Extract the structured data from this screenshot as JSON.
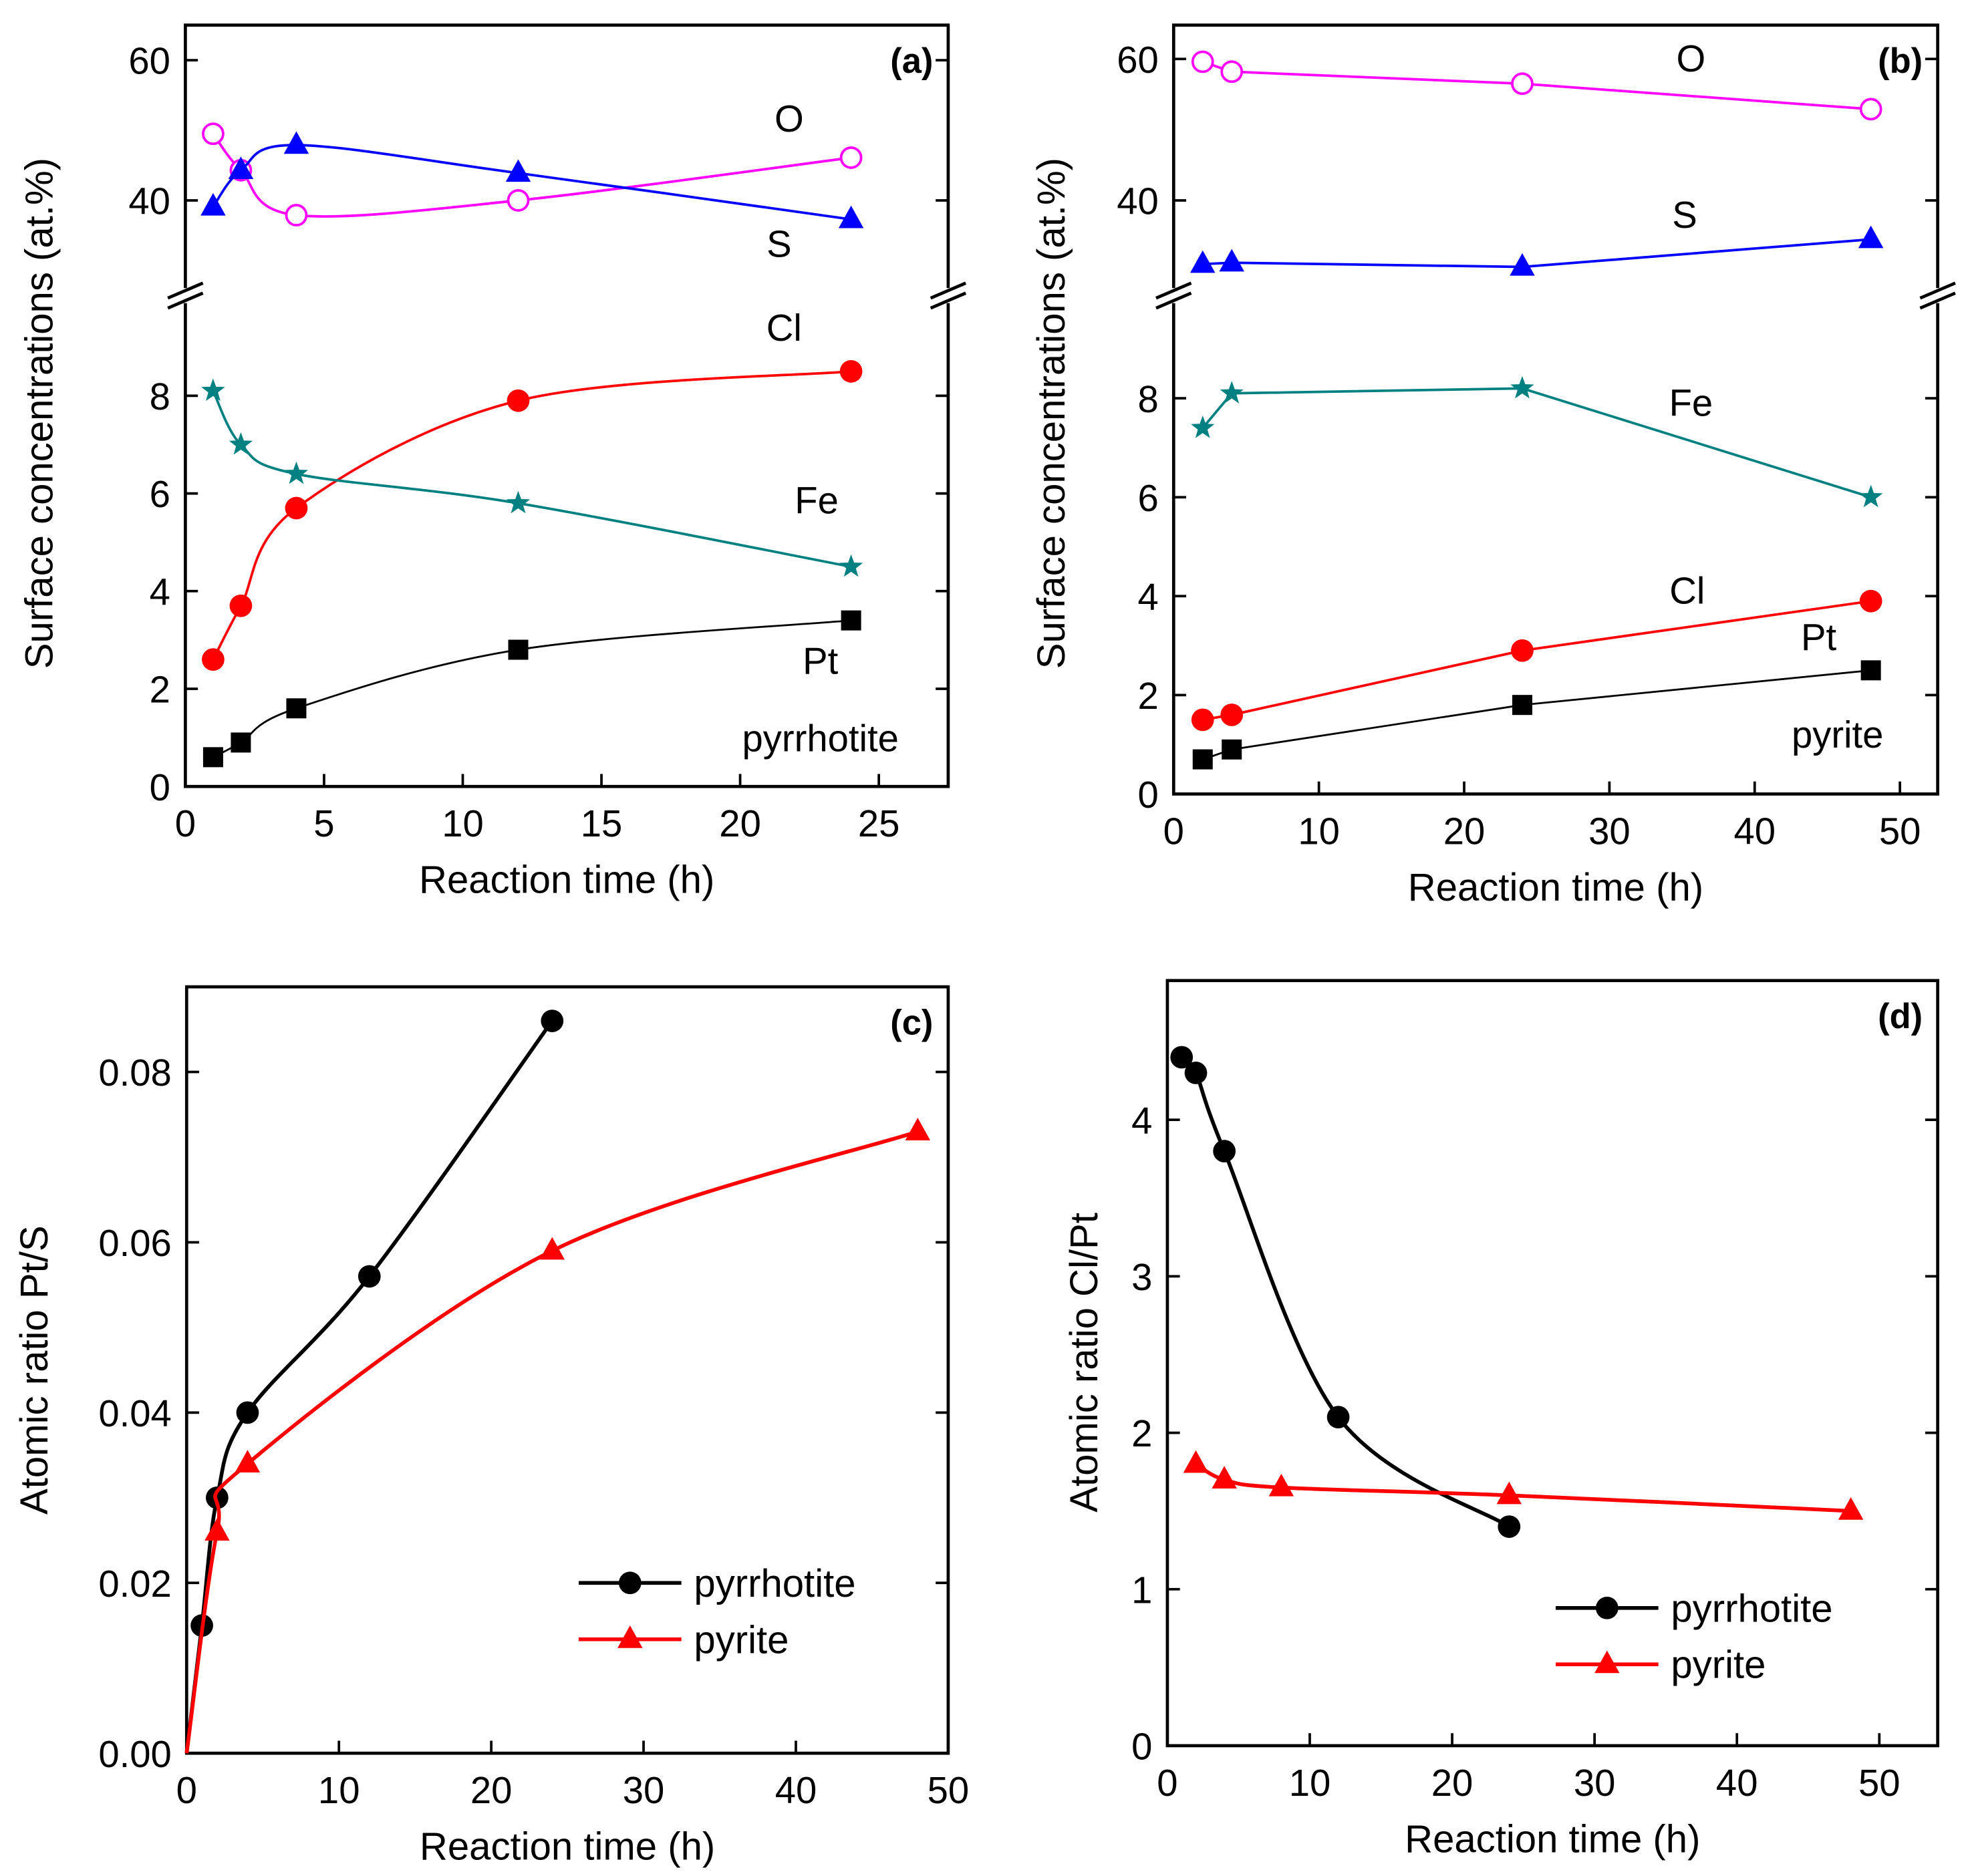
{
  "chart_data": [
    {
      "id": "a",
      "type": "line",
      "panel_label": "(a)",
      "xlabel": "Reaction time (h)",
      "ylabel": "Surface concentrations (at.%)",
      "xlim": [
        0,
        27.5
      ],
      "xticks": [
        0,
        5,
        10,
        15,
        20,
        25
      ],
      "yticks_lower": [
        0,
        2,
        4,
        6,
        8
      ],
      "yticks_upper": [
        40,
        60
      ],
      "broken_y_axis": true,
      "x": [
        1,
        2,
        4,
        12,
        24
      ],
      "series": [
        {
          "name": "O",
          "color": "#ff00ff",
          "marker": "open-circle",
          "values": [
            49.5,
            44.3,
            37.9,
            40.0,
            46.1
          ]
        },
        {
          "name": "S",
          "color": "#0000ff",
          "marker": "triangle",
          "values": [
            39.1,
            44.3,
            47.9,
            43.9,
            37.3
          ]
        },
        {
          "name": "Cl",
          "color": "#ff0000",
          "marker": "circle",
          "values": [
            2.6,
            3.7,
            5.7,
            7.9,
            8.5
          ]
        },
        {
          "name": "Fe",
          "color": "#008080",
          "marker": "star",
          "values": [
            8.1,
            7.0,
            6.4,
            5.8,
            4.5
          ]
        },
        {
          "name": "Pt",
          "color": "#000000",
          "marker": "square",
          "values": [
            0.6,
            0.9,
            1.6,
            2.8,
            3.4
          ]
        }
      ],
      "annotations": [
        "O",
        "S",
        "Cl",
        "Fe",
        "Pt",
        "pyrrhotite"
      ]
    },
    {
      "id": "b",
      "type": "line",
      "panel_label": "(b)",
      "xlabel": "Reaction time (h)",
      "ylabel": "Surface concentrations (at.%)",
      "xlim": [
        0,
        52.6
      ],
      "xticks": [
        0,
        10,
        20,
        30,
        40,
        50
      ],
      "yticks_lower": [
        0,
        2,
        4,
        6,
        8
      ],
      "yticks_upper": [
        40,
        60
      ],
      "broken_y_axis": true,
      "x": [
        2,
        4,
        24,
        48
      ],
      "series": [
        {
          "name": "O",
          "color": "#ff00ff",
          "marker": "open-circle",
          "values": [
            59.6,
            58.2,
            56.5,
            52.9
          ]
        },
        {
          "name": "S",
          "color": "#0000ff",
          "marker": "triangle",
          "values": [
            31.0,
            31.2,
            30.6,
            34.5
          ]
        },
        {
          "name": "Fe",
          "color": "#008080",
          "marker": "star",
          "values": [
            7.4,
            8.1,
            8.2,
            6.0
          ]
        },
        {
          "name": "Cl",
          "color": "#ff0000",
          "marker": "circle",
          "values": [
            1.5,
            1.6,
            2.9,
            3.9
          ]
        },
        {
          "name": "Pt",
          "color": "#000000",
          "marker": "square",
          "values": [
            0.7,
            0.9,
            1.8,
            2.5
          ]
        }
      ],
      "annotations": [
        "O",
        "S",
        "Fe",
        "Cl",
        "Pt",
        "pyrite"
      ]
    },
    {
      "id": "c",
      "type": "line",
      "panel_label": "(c)",
      "xlabel": "Reaction time (h)",
      "ylabel": "Atomic ratio Pt/S",
      "xlim": [
        0,
        50
      ],
      "ylim": [
        0,
        0.09
      ],
      "xticks": [
        0,
        10,
        20,
        30,
        40,
        50
      ],
      "yticks": [
        "0.00",
        "0.02",
        "0.04",
        "0.06",
        "0.08"
      ],
      "series": [
        {
          "name": "pyrrhotite",
          "color": "#000000",
          "marker": "circle",
          "x": [
            1,
            2,
            4,
            12,
            24
          ],
          "values": [
            0.015,
            0.03,
            0.04,
            0.056,
            0.086
          ]
        },
        {
          "name": "pyrite",
          "color": "#ff0000",
          "marker": "triangle",
          "x": [
            2,
            4,
            24,
            48
          ],
          "values": [
            0.026,
            0.034,
            0.059,
            0.073
          ]
        }
      ],
      "legend": "bottom-right"
    },
    {
      "id": "d",
      "type": "line",
      "panel_label": "(d)",
      "xlabel": "Reaction time (h)",
      "ylabel": "Atomic ratio Cl/Pt",
      "xlim": [
        0,
        54.1
      ],
      "ylim": [
        0,
        4.89
      ],
      "xticks": [
        0,
        10,
        20,
        30,
        40,
        50
      ],
      "yticks": [
        "0",
        "1",
        "2",
        "3",
        "4"
      ],
      "series": [
        {
          "name": "pyrrhotite",
          "color": "#000000",
          "marker": "circle",
          "x": [
            1,
            2,
            4,
            12,
            24
          ],
          "values": [
            4.4,
            4.3,
            3.8,
            2.1,
            1.4
          ]
        },
        {
          "name": "pyrite",
          "color": "#ff0000",
          "marker": "triangle",
          "x": [
            2,
            4,
            8,
            24,
            48
          ],
          "values": [
            1.8,
            1.7,
            1.65,
            1.6,
            1.5
          ]
        }
      ],
      "legend": "bottom-right"
    }
  ]
}
